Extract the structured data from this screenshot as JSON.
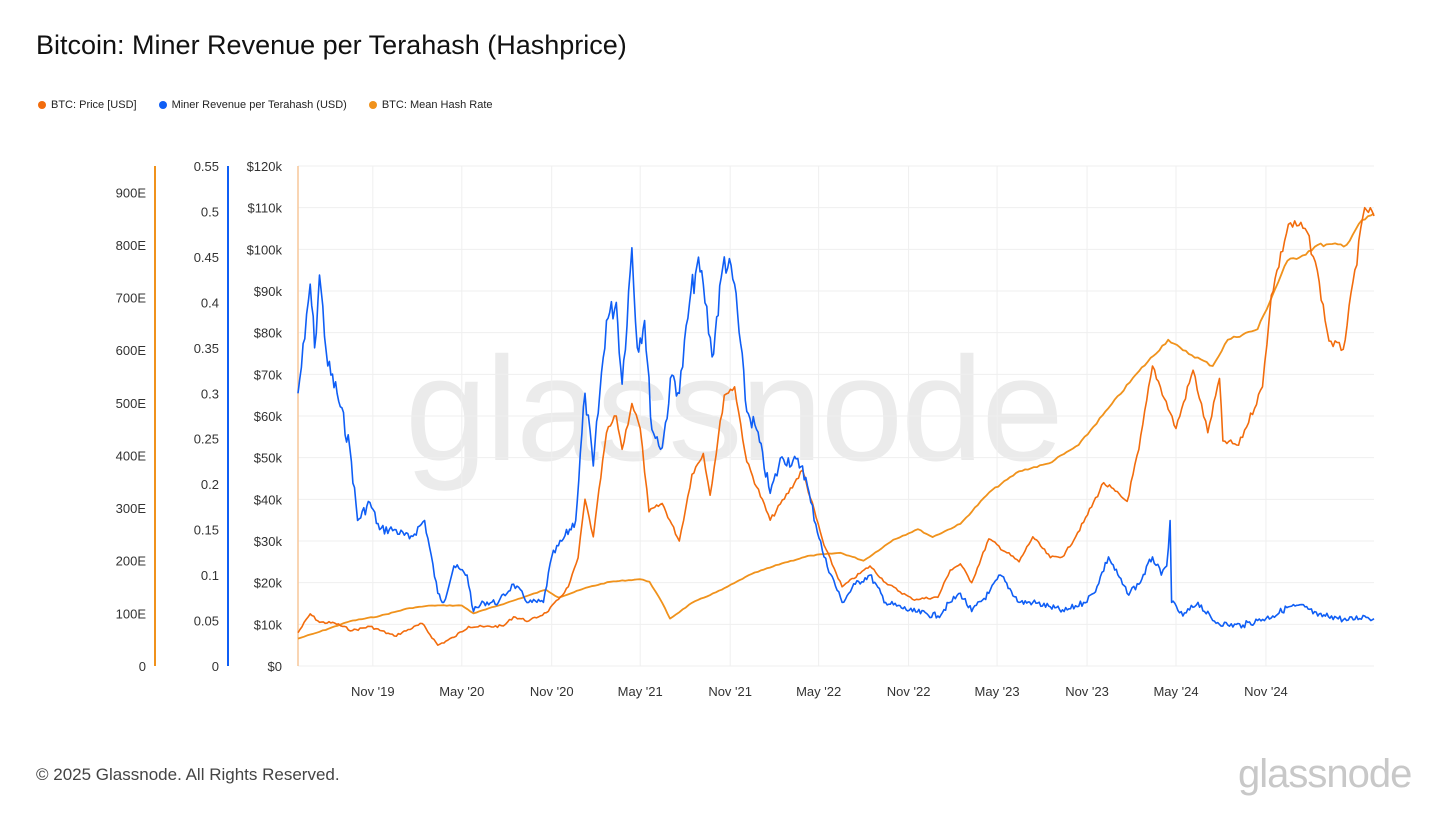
{
  "header": {
    "title": "Bitcoin: Miner Revenue per Terahash (Hashprice)"
  },
  "legend": [
    {
      "label": "BTC: Price [USD]",
      "color": "#f26c0d"
    },
    {
      "label": "Miner Revenue per Terahash (USD)",
      "color": "#0f5ef5"
    },
    {
      "label": "BTC: Mean Hash Rate",
      "color": "#f0921c"
    }
  ],
  "watermark": "glassnode",
  "footer": {
    "copyright": "© 2025 Glassnode. All Rights Reserved.",
    "brand": "glassnode"
  },
  "colors": {
    "price": "#f26c0d",
    "revenue": "#0f5ef5",
    "hashrate": "#f0921c",
    "grid": "#efefef"
  },
  "chart_data": {
    "type": "line",
    "x_range": [
      "2019-06-01",
      "2025-06-10"
    ],
    "x_ticks": [
      {
        "date": "2019-11-01",
        "label": "Nov '19"
      },
      {
        "date": "2020-05-01",
        "label": "May '20"
      },
      {
        "date": "2020-11-01",
        "label": "Nov '20"
      },
      {
        "date": "2021-05-01",
        "label": "May '21"
      },
      {
        "date": "2021-11-01",
        "label": "Nov '21"
      },
      {
        "date": "2022-05-01",
        "label": "May '22"
      },
      {
        "date": "2022-11-01",
        "label": "Nov '22"
      },
      {
        "date": "2023-05-01",
        "label": "May '23"
      },
      {
        "date": "2023-11-01",
        "label": "Nov '23"
      },
      {
        "date": "2024-05-01",
        "label": "May '24"
      },
      {
        "date": "2024-11-01",
        "label": "Nov '24"
      }
    ],
    "axes": {
      "hashrate": {
        "range": [
          0,
          950
        ],
        "ticks": [
          {
            "v": 0,
            "label": "0"
          },
          {
            "v": 100,
            "label": "100E"
          },
          {
            "v": 200,
            "label": "200E"
          },
          {
            "v": 300,
            "label": "300E"
          },
          {
            "v": 400,
            "label": "400E"
          },
          {
            "v": 500,
            "label": "500E"
          },
          {
            "v": 600,
            "label": "600E"
          },
          {
            "v": 700,
            "label": "700E"
          },
          {
            "v": 800,
            "label": "800E"
          },
          {
            "v": 900,
            "label": "900E"
          }
        ]
      },
      "revenue": {
        "range": [
          0,
          0.55
        ],
        "ticks": [
          {
            "v": 0,
            "label": "0"
          },
          {
            "v": 0.05,
            "label": "0.05"
          },
          {
            "v": 0.1,
            "label": "0.1"
          },
          {
            "v": 0.15,
            "label": "0.15"
          },
          {
            "v": 0.2,
            "label": "0.2"
          },
          {
            "v": 0.25,
            "label": "0.25"
          },
          {
            "v": 0.3,
            "label": "0.3"
          },
          {
            "v": 0.35,
            "label": "0.35"
          },
          {
            "v": 0.4,
            "label": "0.4"
          },
          {
            "v": 0.45,
            "label": "0.45"
          },
          {
            "v": 0.5,
            "label": "0.5"
          },
          {
            "v": 0.55,
            "label": "0.55"
          }
        ]
      },
      "price": {
        "range": [
          0,
          120000
        ],
        "ticks": [
          {
            "v": 0,
            "label": "$0"
          },
          {
            "v": 10000,
            "label": "$10k"
          },
          {
            "v": 20000,
            "label": "$20k"
          },
          {
            "v": 30000,
            "label": "$30k"
          },
          {
            "v": 40000,
            "label": "$40k"
          },
          {
            "v": 50000,
            "label": "$50k"
          },
          {
            "v": 60000,
            "label": "$60k"
          },
          {
            "v": 70000,
            "label": "$70k"
          },
          {
            "v": 80000,
            "label": "$80k"
          },
          {
            "v": 90000,
            "label": "$90k"
          },
          {
            "v": 100000,
            "label": "$100k"
          },
          {
            "v": 110000,
            "label": "$110k"
          },
          {
            "v": 120000,
            "label": "$120k"
          }
        ]
      }
    },
    "grid": true,
    "legend_position": "top-left",
    "series": [
      {
        "name": "BTC: Price [USD]",
        "axis": "price",
        "color": "#f26c0d",
        "points": [
          [
            "2019-06-01",
            8000
          ],
          [
            "2019-06-26",
            12500
          ],
          [
            "2019-07-15",
            10500
          ],
          [
            "2019-08-15",
            10300
          ],
          [
            "2019-09-20",
            8500
          ],
          [
            "2019-10-26",
            9500
          ],
          [
            "2019-12-15",
            7200
          ],
          [
            "2020-02-10",
            10200
          ],
          [
            "2020-03-13",
            5000
          ],
          [
            "2020-04-15",
            6900
          ],
          [
            "2020-05-15",
            9500
          ],
          [
            "2020-06-15",
            9400
          ],
          [
            "2020-07-25",
            9600
          ],
          [
            "2020-08-15",
            11800
          ],
          [
            "2020-09-15",
            10800
          ],
          [
            "2020-10-21",
            12800
          ],
          [
            "2020-11-15",
            16000
          ],
          [
            "2020-12-05",
            19000
          ],
          [
            "2020-12-25",
            26000
          ],
          [
            "2021-01-08",
            40000
          ],
          [
            "2021-01-25",
            31000
          ],
          [
            "2021-02-21",
            56000
          ],
          [
            "2021-03-13",
            60000
          ],
          [
            "2021-03-25",
            52000
          ],
          [
            "2021-04-14",
            63000
          ],
          [
            "2021-05-01",
            57000
          ],
          [
            "2021-05-19",
            37000
          ],
          [
            "2021-06-15",
            39000
          ],
          [
            "2021-07-20",
            30000
          ],
          [
            "2021-08-15",
            46000
          ],
          [
            "2021-09-07",
            51000
          ],
          [
            "2021-09-21",
            41000
          ],
          [
            "2021-10-20",
            65000
          ],
          [
            "2021-11-10",
            67000
          ],
          [
            "2021-12-05",
            49000
          ],
          [
            "2022-01-22",
            35000
          ],
          [
            "2022-03-29",
            47000
          ],
          [
            "2022-05-12",
            29000
          ],
          [
            "2022-06-18",
            19000
          ],
          [
            "2022-08-14",
            24000
          ],
          [
            "2022-09-15",
            20000
          ],
          [
            "2022-11-09",
            16000
          ],
          [
            "2022-12-31",
            16500
          ],
          [
            "2023-01-25",
            23000
          ],
          [
            "2023-02-15",
            24500
          ],
          [
            "2023-03-10",
            20000
          ],
          [
            "2023-04-14",
            30500
          ],
          [
            "2023-06-15",
            25000
          ],
          [
            "2023-07-13",
            31000
          ],
          [
            "2023-08-18",
            26000
          ],
          [
            "2023-09-15",
            26500
          ],
          [
            "2023-10-25",
            34500
          ],
          [
            "2023-12-05",
            44000
          ],
          [
            "2024-01-22",
            39500
          ],
          [
            "2024-02-15",
            52000
          ],
          [
            "2024-03-14",
            72000
          ],
          [
            "2024-05-01",
            57000
          ],
          [
            "2024-06-05",
            71000
          ],
          [
            "2024-07-05",
            56000
          ],
          [
            "2024-07-29",
            69000
          ],
          [
            "2024-08-05",
            54000
          ],
          [
            "2024-09-06",
            53000
          ],
          [
            "2024-10-25",
            67000
          ],
          [
            "2024-11-12",
            89000
          ],
          [
            "2024-12-17",
            106000
          ],
          [
            "2025-01-20",
            105000
          ],
          [
            "2025-02-10",
            97000
          ],
          [
            "2025-03-10",
            78000
          ],
          [
            "2025-04-08",
            76000
          ],
          [
            "2025-05-22",
            110000
          ],
          [
            "2025-06-10",
            108000
          ]
        ]
      },
      {
        "name": "BTC: Mean Hash Rate",
        "axis": "hashrate",
        "color": "#f0921c",
        "points": [
          [
            "2019-06-01",
            52
          ],
          [
            "2019-07-15",
            65
          ],
          [
            "2019-09-15",
            85
          ],
          [
            "2019-11-15",
            95
          ],
          [
            "2020-01-15",
            110
          ],
          [
            "2020-03-01",
            115
          ],
          [
            "2020-05-01",
            115
          ],
          [
            "2020-05-25",
            100
          ],
          [
            "2020-08-01",
            120
          ],
          [
            "2020-10-20",
            145
          ],
          [
            "2020-11-15",
            130
          ],
          [
            "2021-01-15",
            150
          ],
          [
            "2021-03-01",
            160
          ],
          [
            "2021-05-01",
            165
          ],
          [
            "2021-05-20",
            160
          ],
          [
            "2021-06-15",
            120
          ],
          [
            "2021-07-01",
            90
          ],
          [
            "2021-08-15",
            120
          ],
          [
            "2021-10-15",
            145
          ],
          [
            "2021-12-15",
            175
          ],
          [
            "2022-02-15",
            195
          ],
          [
            "2022-04-15",
            210
          ],
          [
            "2022-06-15",
            215
          ],
          [
            "2022-08-01",
            200
          ],
          [
            "2022-10-01",
            240
          ],
          [
            "2022-11-20",
            260
          ],
          [
            "2022-12-20",
            245
          ],
          [
            "2023-02-15",
            270
          ],
          [
            "2023-04-15",
            330
          ],
          [
            "2023-06-15",
            370
          ],
          [
            "2023-08-15",
            385
          ],
          [
            "2023-10-15",
            420
          ],
          [
            "2023-12-15",
            490
          ],
          [
            "2024-02-15",
            560
          ],
          [
            "2024-04-15",
            620
          ],
          [
            "2024-05-15",
            600
          ],
          [
            "2024-07-15",
            570
          ],
          [
            "2024-08-15",
            620
          ],
          [
            "2024-10-15",
            640
          ],
          [
            "2024-12-15",
            770
          ],
          [
            "2025-01-15",
            780
          ],
          [
            "2025-02-15",
            800
          ],
          [
            "2025-04-15",
            800
          ],
          [
            "2025-05-10",
            840
          ],
          [
            "2025-06-10",
            860
          ]
        ]
      },
      {
        "name": "Miner Revenue per Terahash (USD)",
        "axis": "revenue",
        "color": "#0f5ef5",
        "points": [
          [
            "2019-06-01",
            0.3
          ],
          [
            "2019-06-15",
            0.36
          ],
          [
            "2019-06-26",
            0.42
          ],
          [
            "2019-07-05",
            0.35
          ],
          [
            "2019-07-15",
            0.43
          ],
          [
            "2019-08-01",
            0.33
          ],
          [
            "2019-08-20",
            0.3
          ],
          [
            "2019-09-15",
            0.24
          ],
          [
            "2019-10-01",
            0.16
          ],
          [
            "2019-10-26",
            0.18
          ],
          [
            "2019-11-15",
            0.15
          ],
          [
            "2019-12-15",
            0.15
          ],
          [
            "2020-01-15",
            0.14
          ],
          [
            "2020-02-15",
            0.16
          ],
          [
            "2020-03-13",
            0.08
          ],
          [
            "2020-03-25",
            0.07
          ],
          [
            "2020-04-15",
            0.11
          ],
          [
            "2020-05-12",
            0.1
          ],
          [
            "2020-05-25",
            0.06
          ],
          [
            "2020-06-15",
            0.07
          ],
          [
            "2020-07-15",
            0.07
          ],
          [
            "2020-08-15",
            0.09
          ],
          [
            "2020-09-15",
            0.07
          ],
          [
            "2020-10-15",
            0.07
          ],
          [
            "2020-11-01",
            0.12
          ],
          [
            "2020-11-25",
            0.14
          ],
          [
            "2020-12-20",
            0.16
          ],
          [
            "2021-01-08",
            0.3
          ],
          [
            "2021-01-25",
            0.22
          ],
          [
            "2021-02-21",
            0.38
          ],
          [
            "2021-03-13",
            0.4
          ],
          [
            "2021-03-25",
            0.31
          ],
          [
            "2021-04-14",
            0.46
          ],
          [
            "2021-04-25",
            0.35
          ],
          [
            "2021-05-10",
            0.38
          ],
          [
            "2021-05-25",
            0.26
          ],
          [
            "2021-06-15",
            0.24
          ],
          [
            "2021-07-05",
            0.32
          ],
          [
            "2021-07-20",
            0.3
          ],
          [
            "2021-08-10",
            0.4
          ],
          [
            "2021-08-25",
            0.44
          ],
          [
            "2021-09-07",
            0.42
          ],
          [
            "2021-09-25",
            0.34
          ],
          [
            "2021-10-20",
            0.45
          ],
          [
            "2021-11-10",
            0.42
          ],
          [
            "2021-12-05",
            0.28
          ],
          [
            "2021-12-25",
            0.26
          ],
          [
            "2022-01-22",
            0.19
          ],
          [
            "2022-02-15",
            0.23
          ],
          [
            "2022-03-29",
            0.22
          ],
          [
            "2022-04-15",
            0.18
          ],
          [
            "2022-05-12",
            0.12
          ],
          [
            "2022-06-18",
            0.07
          ],
          [
            "2022-07-15",
            0.09
          ],
          [
            "2022-08-14",
            0.1
          ],
          [
            "2022-09-15",
            0.07
          ],
          [
            "2022-11-09",
            0.06
          ],
          [
            "2022-12-31",
            0.055
          ],
          [
            "2023-01-25",
            0.07
          ],
          [
            "2023-02-15",
            0.08
          ],
          [
            "2023-03-10",
            0.06
          ],
          [
            "2023-04-14",
            0.08
          ],
          [
            "2023-05-08",
            0.1
          ],
          [
            "2023-06-15",
            0.07
          ],
          [
            "2023-07-13",
            0.07
          ],
          [
            "2023-08-18",
            0.065
          ],
          [
            "2023-09-15",
            0.06
          ],
          [
            "2023-10-25",
            0.07
          ],
          [
            "2023-11-15",
            0.08
          ],
          [
            "2023-12-15",
            0.12
          ],
          [
            "2024-01-22",
            0.08
          ],
          [
            "2024-02-15",
            0.09
          ],
          [
            "2024-03-14",
            0.12
          ],
          [
            "2024-04-01",
            0.1
          ],
          [
            "2024-04-12",
            0.11
          ],
          [
            "2024-04-19",
            0.16
          ],
          [
            "2024-04-22",
            0.07
          ],
          [
            "2024-05-15",
            0.055
          ],
          [
            "2024-06-15",
            0.07
          ],
          [
            "2024-07-15",
            0.05
          ],
          [
            "2024-08-15",
            0.045
          ],
          [
            "2024-09-15",
            0.045
          ],
          [
            "2024-10-15",
            0.05
          ],
          [
            "2024-11-15",
            0.055
          ],
          [
            "2024-12-17",
            0.065
          ],
          [
            "2025-01-20",
            0.065
          ],
          [
            "2025-02-15",
            0.055
          ],
          [
            "2025-03-15",
            0.055
          ],
          [
            "2025-04-15",
            0.05
          ],
          [
            "2025-05-22",
            0.055
          ],
          [
            "2025-06-10",
            0.052
          ]
        ]
      }
    ]
  }
}
